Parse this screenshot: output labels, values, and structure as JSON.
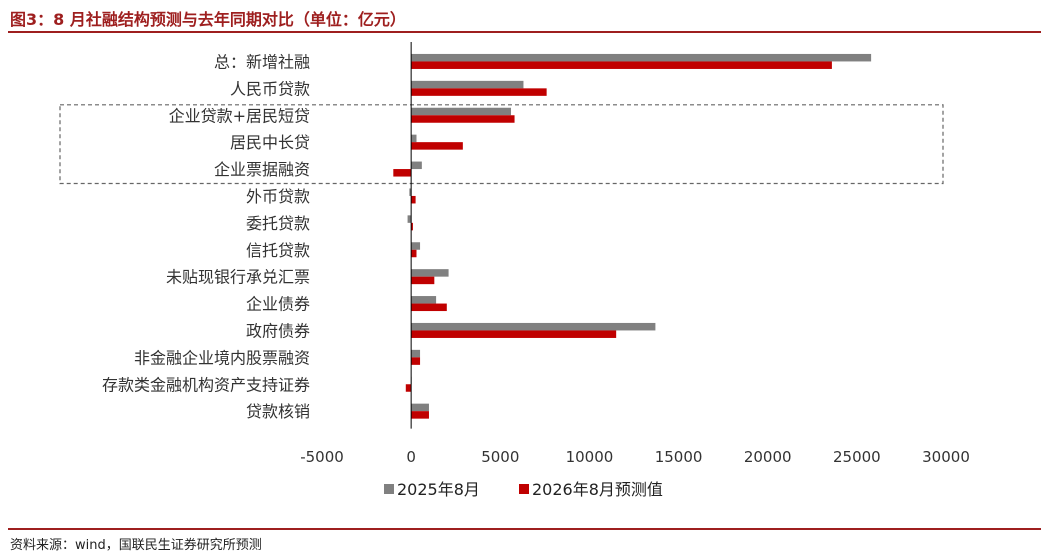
{
  "title": "图3：8 月社融结构预测与去年同期对比（单位：亿元）",
  "source": "资料来源：wind，国联民生证券研究所预测",
  "colors": {
    "series1": "#808080",
    "series2": "#c00000",
    "accent": "#9e1f1f",
    "axis": "#000000",
    "box": "#666666"
  },
  "chart_data": {
    "type": "bar",
    "orientation": "horizontal",
    "categories": [
      "总：新增社融",
      "人民币贷款",
      "企业贷款+居民短贷",
      "居民中长贷",
      "企业票据融资",
      "外币贷款",
      "委托贷款",
      "信托贷款",
      "未贴现银行承兑汇票",
      "企业债券",
      "政府债券",
      "非金融企业境内股票融资",
      "存款类金融机构资产支持证券",
      "贷款核销"
    ],
    "series": [
      {
        "name": "2025年8月",
        "values": [
          25800,
          6300,
          5600,
          300,
          600,
          -100,
          -200,
          500,
          2100,
          1400,
          13700,
          500,
          0,
          1000
        ]
      },
      {
        "name": "2026年8月预测值",
        "values": [
          23600,
          7600,
          5800,
          2900,
          -1000,
          250,
          100,
          300,
          1300,
          2000,
          11500,
          500,
          -300,
          1000
        ]
      }
    ],
    "xlim": [
      -5000,
      30000
    ],
    "xticks": [
      -5000,
      0,
      5000,
      10000,
      15000,
      20000,
      25000,
      30000
    ],
    "grid": false,
    "legend_position": "bottom",
    "highlight_box_categories": [
      "企业贷款+居民短贷",
      "居民中长贷",
      "企业票据融资"
    ]
  }
}
